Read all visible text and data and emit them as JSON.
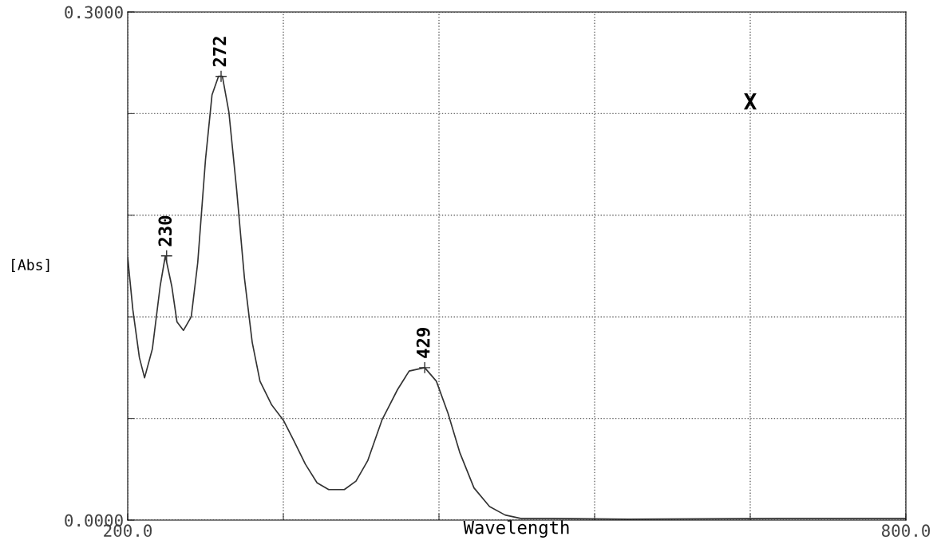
{
  "chart_data": {
    "type": "line",
    "xlabel": "Wavelength",
    "ylabel": "[Abs]",
    "x": [
      200,
      204,
      209,
      213,
      219,
      225,
      229,
      234,
      238,
      243,
      249,
      254,
      260,
      265,
      270,
      273,
      278,
      284,
      290,
      296,
      302,
      311,
      320,
      328,
      337,
      346,
      355,
      367,
      376,
      385,
      396,
      408,
      417,
      429,
      438,
      447,
      456,
      467,
      479,
      491,
      503,
      527,
      586,
      704,
      800
    ],
    "series": [
      {
        "color": "#333333",
        "values": [
          0.155,
          0.124,
          0.096,
          0.084,
          0.101,
          0.138,
          0.156,
          0.138,
          0.117,
          0.112,
          0.12,
          0.152,
          0.213,
          0.251,
          0.262,
          0.262,
          0.241,
          0.195,
          0.143,
          0.105,
          0.082,
          0.068,
          0.059,
          0.047,
          0.033,
          0.022,
          0.018,
          0.018,
          0.023,
          0.035,
          0.059,
          0.077,
          0.088,
          0.09,
          0.082,
          0.063,
          0.04,
          0.019,
          0.008,
          0.003,
          0.001,
          0.001,
          0.0005,
          0.001,
          0.001
        ]
      }
    ],
    "xlim": [
      200,
      800
    ],
    "ylim": [
      0,
      0.3
    ],
    "xticks": [
      {
        "value": 200,
        "label": "200.0"
      },
      {
        "value": 320,
        "label": null
      },
      {
        "value": 440,
        "label": null
      },
      {
        "value": 560,
        "label": null
      },
      {
        "value": 680,
        "label": null
      },
      {
        "value": 800,
        "label": "800.0"
      }
    ],
    "yticks": [
      {
        "value": 0,
        "label": "0.0000"
      },
      {
        "value": 0.06,
        "label": null
      },
      {
        "value": 0.12,
        "label": null
      },
      {
        "value": 0.18,
        "label": null
      },
      {
        "value": 0.24,
        "label": null
      },
      {
        "value": 0.3,
        "label": "0.3000"
      }
    ],
    "grid": true,
    "line_style": "solid",
    "marker": "none",
    "annotations": [
      {
        "text": "230",
        "x": 230,
        "y": 0.156
      },
      {
        "text": "272",
        "x": 272,
        "y": 0.262
      },
      {
        "text": "429",
        "x": 429,
        "y": 0.09
      },
      "X"
    ]
  }
}
